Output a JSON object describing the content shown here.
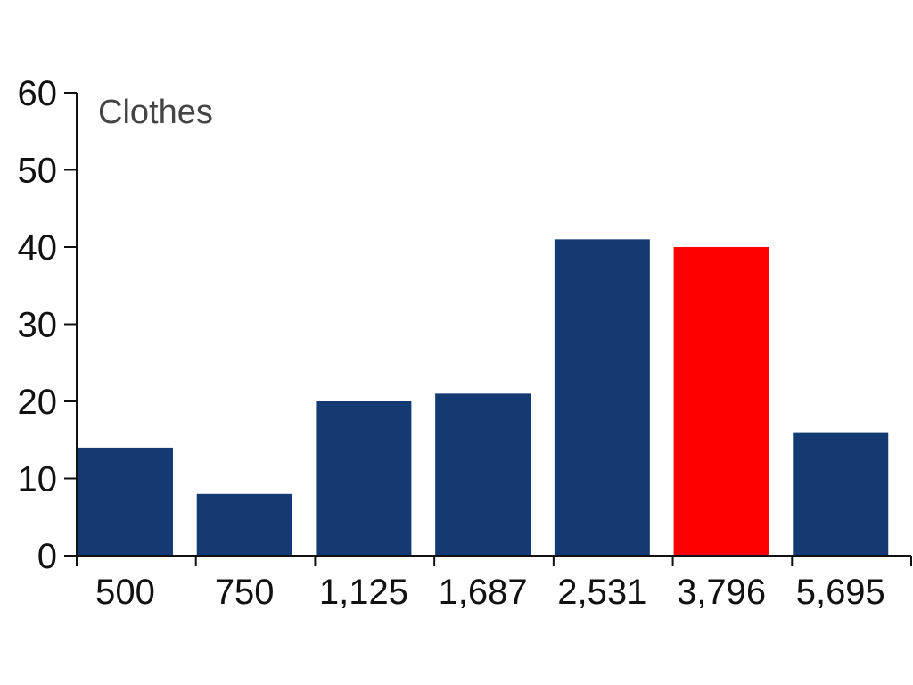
{
  "chart_data": {
    "type": "bar",
    "title": "Clothes",
    "xlabel": "",
    "ylabel": "",
    "categories": [
      "500",
      "750",
      "1,125",
      "1,687",
      "2,531",
      "3,796",
      "5,695"
    ],
    "values": [
      14,
      8,
      20,
      21,
      41,
      40,
      16
    ],
    "ylim": [
      0,
      60
    ],
    "yticks": [
      "0",
      "10",
      "20",
      "30",
      "40",
      "50",
      "60"
    ],
    "highlight_index": 5,
    "grid": false,
    "colors": {
      "bar": "#133a73",
      "highlight": "#ff0000"
    }
  }
}
